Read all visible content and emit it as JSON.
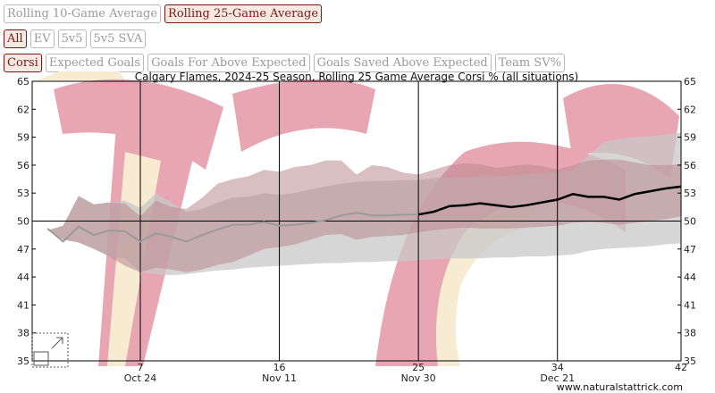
{
  "controls": {
    "average_buttons": [
      {
        "label": "Rolling 10-Game Average",
        "active": false
      },
      {
        "label": "Rolling 25-Game Average",
        "active": true
      }
    ],
    "situation_buttons": [
      {
        "label": "All",
        "active": true
      },
      {
        "label": "EV",
        "active": false
      },
      {
        "label": "5v5",
        "active": false
      },
      {
        "label": "5v5 SVA",
        "active": false
      }
    ],
    "metric_buttons": [
      {
        "label": "Corsi",
        "active": true
      },
      {
        "label": "Expected Goals",
        "active": false
      },
      {
        "label": "Goals For Above Expected",
        "active": false
      },
      {
        "label": "Goals Saved Above Expected",
        "active": false
      },
      {
        "label": "Team SV%",
        "active": false
      }
    ]
  },
  "credit": "www.naturalstattrick.com",
  "watermark": {
    "name": "flaming-c-logo",
    "colors": {
      "red": "#e8a5b2",
      "gold": "#f7ecd2"
    }
  },
  "colors": {
    "line_partial": "#9a9a9a",
    "line_full": "#000000",
    "band_gray": "#c8c8c8",
    "band_red": "#b98a90",
    "grid": "#000000"
  },
  "chart_data": {
    "type": "line",
    "title": "Calgary Flames, 2024-25 Season, Rolling 25 Game Average Corsi % (all situations)",
    "ylim": [
      35,
      65
    ],
    "y_ticks": [
      35,
      38,
      41,
      44,
      47,
      50,
      53,
      56,
      59,
      62,
      65
    ],
    "xlim": [
      0,
      42
    ],
    "x_ticks": [
      {
        "game": 7,
        "date": "Oct 24"
      },
      {
        "game": 16,
        "date": "Nov 11"
      },
      {
        "game": 25,
        "date": "Nov 30"
      },
      {
        "game": 34,
        "date": "Dec 21"
      },
      {
        "game": 42,
        "date": ""
      }
    ],
    "reference_line": 50,
    "full_window_from_game": 25,
    "games": [
      1,
      2,
      3,
      4,
      5,
      6,
      7,
      8,
      9,
      10,
      11,
      12,
      13,
      14,
      15,
      16,
      17,
      18,
      19,
      20,
      21,
      22,
      23,
      24,
      25,
      26,
      27,
      28,
      29,
      30,
      31,
      32,
      33,
      34,
      35,
      36,
      37,
      38,
      39,
      40,
      41,
      42
    ],
    "rolling_avg": [
      49.2,
      47.8,
      49.4,
      48.5,
      49.0,
      48.9,
      47.8,
      48.7,
      48.3,
      47.8,
      48.5,
      49.1,
      49.6,
      49.6,
      49.9,
      49.5,
      49.6,
      49.8,
      50.1,
      50.6,
      50.9,
      50.6,
      50.6,
      50.7,
      50.7,
      51.0,
      51.6,
      51.7,
      51.9,
      51.7,
      51.5,
      51.7,
      52.0,
      52.3,
      52.9,
      52.6,
      52.6,
      52.3,
      52.9,
      53.2,
      53.5,
      53.7
    ],
    "gray_band_upper": [
      49.0,
      49.5,
      52.7,
      51.8,
      52.0,
      52.2,
      51.4,
      53.0,
      52.0,
      51.0,
      51.3,
      52.0,
      52.5,
      52.6,
      53.0,
      52.8,
      53.0,
      53.4,
      53.7,
      54.0,
      54.2,
      54.3,
      54.3,
      54.4,
      54.4,
      54.6,
      54.7,
      54.7,
      54.8,
      54.8,
      54.9,
      55.0,
      55.1,
      55.3,
      55.5,
      57.0,
      58.5,
      58.8,
      59.0,
      59.1,
      59.3,
      59.5
    ],
    "gray_band_lower": [
      49.0,
      48.0,
      47.7,
      47.0,
      46.2,
      46.0,
      44.5,
      44.3,
      44.2,
      44.3,
      44.5,
      44.7,
      44.8,
      45.0,
      45.1,
      45.2,
      45.3,
      45.4,
      45.5,
      45.5,
      45.6,
      45.6,
      45.7,
      45.7,
      45.8,
      45.9,
      46.0,
      46.0,
      46.0,
      46.1,
      46.1,
      46.2,
      46.2,
      46.3,
      46.4,
      46.8,
      47.0,
      47.1,
      47.2,
      47.3,
      47.5,
      47.6
    ],
    "red_band_upper": [
      49.0,
      49.5,
      52.7,
      51.8,
      52.0,
      51.9,
      50.5,
      52.2,
      51.5,
      51.3,
      52.5,
      54.0,
      54.5,
      54.8,
      55.5,
      55.3,
      55.8,
      56.0,
      56.5,
      56.5,
      55.0,
      56.0,
      55.8,
      55.2,
      55.0,
      55.5,
      56.0,
      56.2,
      56.1,
      55.7,
      55.9,
      56.1,
      55.9,
      55.5,
      56.0,
      56.5,
      56.6,
      56.6,
      56.3,
      56.0,
      56.0,
      56.1
    ],
    "red_band_lower": [
      49.0,
      48.0,
      47.7,
      47.0,
      46.2,
      45.2,
      44.5,
      45.0,
      44.8,
      44.5,
      44.8,
      45.3,
      45.6,
      46.3,
      47.0,
      47.2,
      47.5,
      48.0,
      48.5,
      48.6,
      48.0,
      48.3,
      48.4,
      48.5,
      48.8,
      49.0,
      49.2,
      49.3,
      49.2,
      49.2,
      49.2,
      49.3,
      49.4,
      49.5,
      49.8,
      49.9,
      49.8,
      49.6,
      49.8,
      50.0,
      50.2,
      50.5
    ]
  }
}
